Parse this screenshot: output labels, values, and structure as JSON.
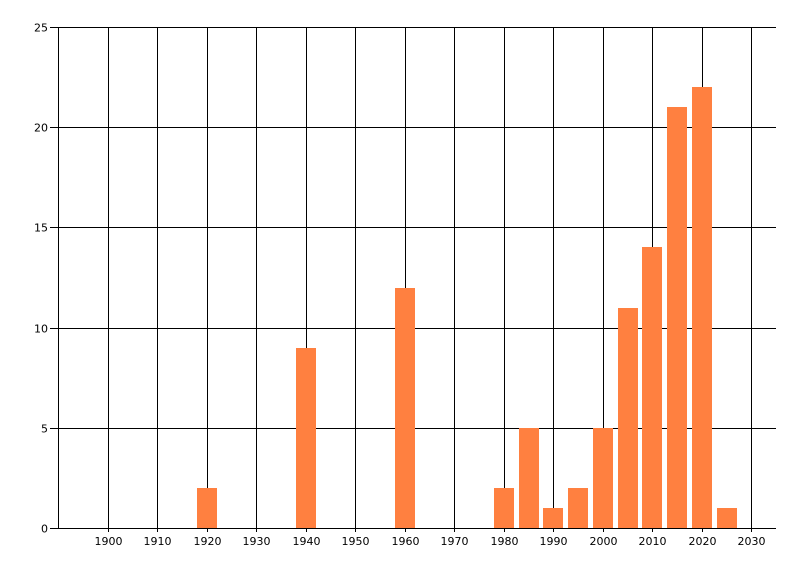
{
  "chart_data": {
    "type": "bar",
    "title": "",
    "xlabel": "",
    "ylabel": "",
    "x": [
      1920,
      1940,
      1960,
      1980,
      1985,
      1990,
      1995,
      2000,
      2005,
      2010,
      2015,
      2020,
      2025
    ],
    "values": [
      2,
      9,
      12,
      2,
      5,
      1,
      2,
      5,
      11,
      14,
      21,
      22,
      1
    ],
    "bar_width": 4,
    "xlim": [
      1890,
      2035
    ],
    "ylim": [
      0,
      25
    ],
    "xticks": [
      "1900",
      "1910",
      "1920",
      "1930",
      "1940",
      "1950",
      "1960",
      "1970",
      "1980",
      "1990",
      "2000",
      "2010",
      "2020",
      "2030"
    ],
    "yticks": [
      "0",
      "5",
      "10",
      "15",
      "20",
      "25"
    ],
    "grid": true,
    "legend": "none",
    "colors": {
      "bar": "#FF8040",
      "grid": "#000000"
    }
  }
}
